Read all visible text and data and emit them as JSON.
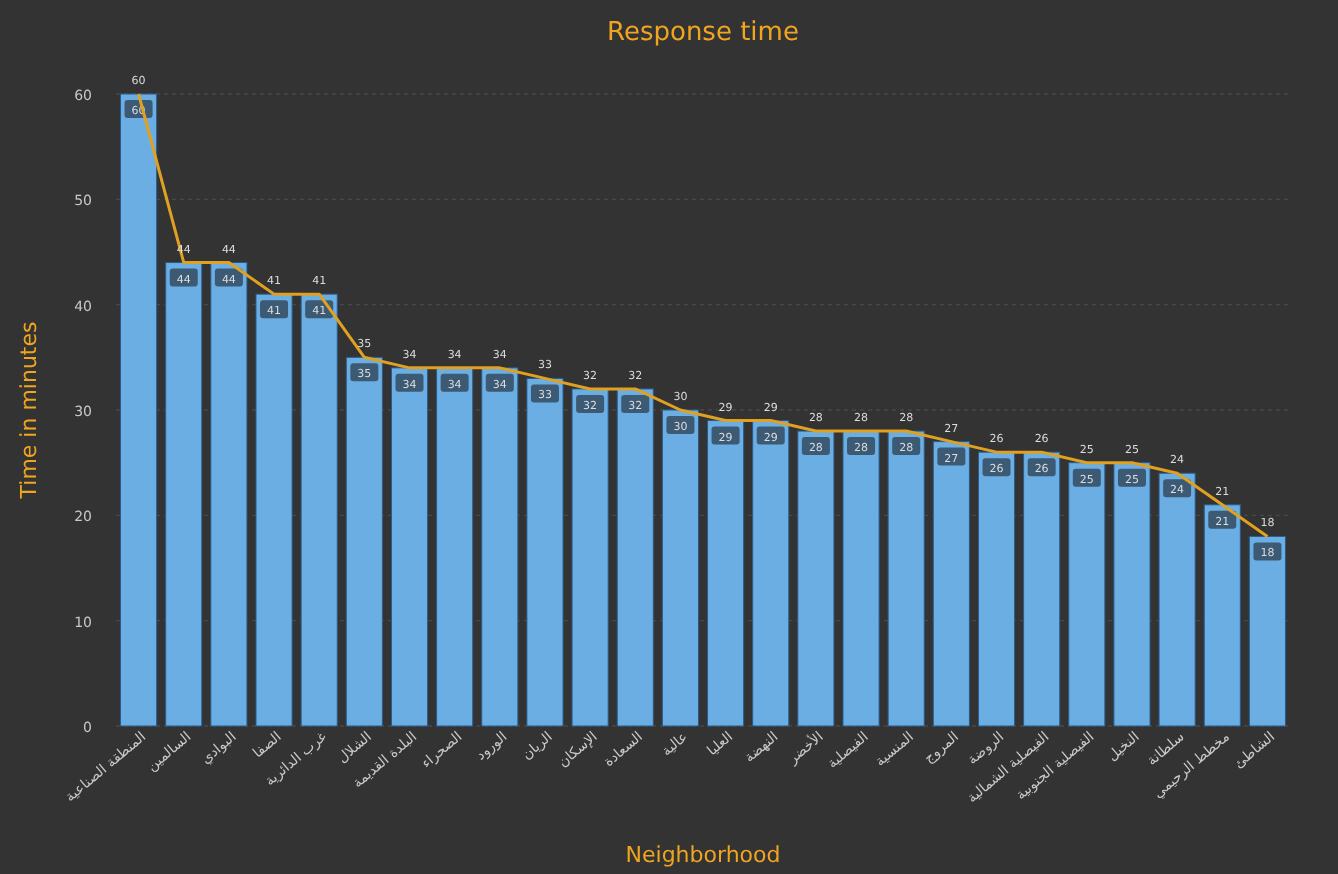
{
  "chart_data": {
    "type": "bar",
    "title": "Response time",
    "xlabel": "Neighborhood",
    "ylabel": "Time in minutes",
    "categories": [
      "المنطقة الصناعية",
      "السالمين",
      "البوادي",
      "الصفا",
      "غرب الدائرية",
      "الشلال",
      "البلدة القديمة",
      "الصحراء",
      "الورود",
      "الريان",
      "الإسكان",
      "السعادة",
      "عالية",
      "العليا",
      "النهضة",
      "الأخضر",
      "الفيصلية",
      "المنسية",
      "المروج",
      "الروضة",
      "الفيصلية الشمالية",
      "الفيصلية الجنوبية",
      "النخيل",
      "سلطانة",
      "مخطط الرحيمي",
      "الشاطئ"
    ],
    "series": [
      {
        "color": "#6aaee3",
        "values": [
          60,
          44,
          44,
          41,
          41,
          35,
          34,
          34,
          34,
          33,
          32,
          32,
          30,
          29,
          29,
          28,
          28,
          28,
          27,
          26,
          26,
          25,
          25,
          24,
          21,
          18
        ]
      },
      {
        "type": "line",
        "color": "#e0a020",
        "values": [
          60,
          44,
          44,
          41,
          41,
          35,
          34,
          34,
          34,
          33,
          32,
          32,
          30,
          29,
          29,
          28,
          28,
          28,
          27,
          26,
          26,
          25,
          25,
          24,
          21,
          18
        ]
      }
    ],
    "ylim": [
      0,
      60
    ],
    "yticks": [
      0,
      10,
      20,
      30,
      40,
      50,
      60
    ],
    "grid": "y",
    "data_labels": true
  }
}
